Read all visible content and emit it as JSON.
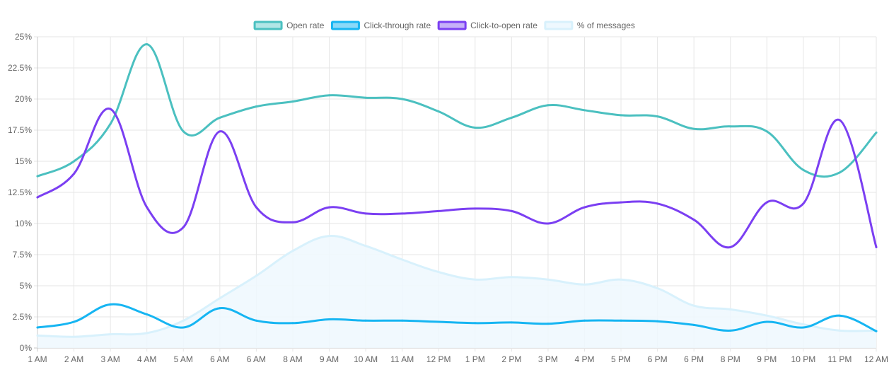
{
  "chart_data": {
    "type": "line",
    "title": "",
    "xlabel": "",
    "ylabel": "",
    "ylim": [
      0,
      25
    ],
    "y_ticks": [
      "0%",
      "2.5%",
      "5%",
      "7.5%",
      "10%",
      "12.5%",
      "15%",
      "17.5%",
      "20%",
      "22.5%",
      "25%"
    ],
    "grid": true,
    "legend_position": "top-center",
    "categories": [
      "1 AM",
      "2 AM",
      "3 AM",
      "4 AM",
      "5 AM",
      "6 AM",
      "6 AM",
      "8 AM",
      "9 AM",
      "10 AM",
      "11 AM",
      "12 PM",
      "1 PM",
      "2 PM",
      "3 PM",
      "4 PM",
      "5 PM",
      "6 PM",
      "6 PM",
      "8 PM",
      "9 PM",
      "10 PM",
      "11 PM",
      "12 AM"
    ],
    "series": [
      {
        "name": "Open rate",
        "color": "#4bc0c0",
        "fill": "#b2e6e6",
        "area": false,
        "values": [
          13.8,
          15.0,
          18.0,
          24.4,
          17.4,
          18.5,
          19.4,
          19.8,
          20.3,
          20.1,
          20.0,
          19.0,
          17.7,
          18.5,
          19.5,
          19.1,
          18.7,
          18.6,
          17.6,
          17.8,
          17.4,
          14.3,
          14.1,
          17.3
        ]
      },
      {
        "name": "Click-through rate",
        "color": "#16b5f2",
        "fill": "#8ad9f8",
        "area": false,
        "values": [
          1.65,
          2.1,
          3.5,
          2.7,
          1.65,
          3.2,
          2.2,
          2.0,
          2.3,
          2.2,
          2.2,
          2.1,
          2.0,
          2.05,
          1.95,
          2.2,
          2.2,
          2.15,
          1.85,
          1.4,
          2.1,
          1.65,
          2.6,
          1.35
        ]
      },
      {
        "name": "Click-to-open rate",
        "color": "#7b3ff2",
        "fill": "#c6b0f8",
        "area": false,
        "values": [
          12.1,
          14.0,
          19.2,
          11.3,
          9.7,
          17.4,
          11.3,
          10.1,
          11.3,
          10.8,
          10.8,
          11.0,
          11.2,
          11.0,
          10.0,
          11.3,
          11.7,
          11.6,
          10.3,
          8.1,
          11.7,
          11.6,
          18.3,
          8.1
        ]
      },
      {
        "name": "% of messages",
        "color": "#d8f1fc",
        "fill": "#eef8fe",
        "area": true,
        "values": [
          1.0,
          0.9,
          1.1,
          1.2,
          2.2,
          4.0,
          5.8,
          7.8,
          9.0,
          8.2,
          7.1,
          6.1,
          5.5,
          5.7,
          5.5,
          5.1,
          5.5,
          4.8,
          3.4,
          3.1,
          2.6,
          1.9,
          1.4,
          1.4
        ]
      }
    ]
  }
}
